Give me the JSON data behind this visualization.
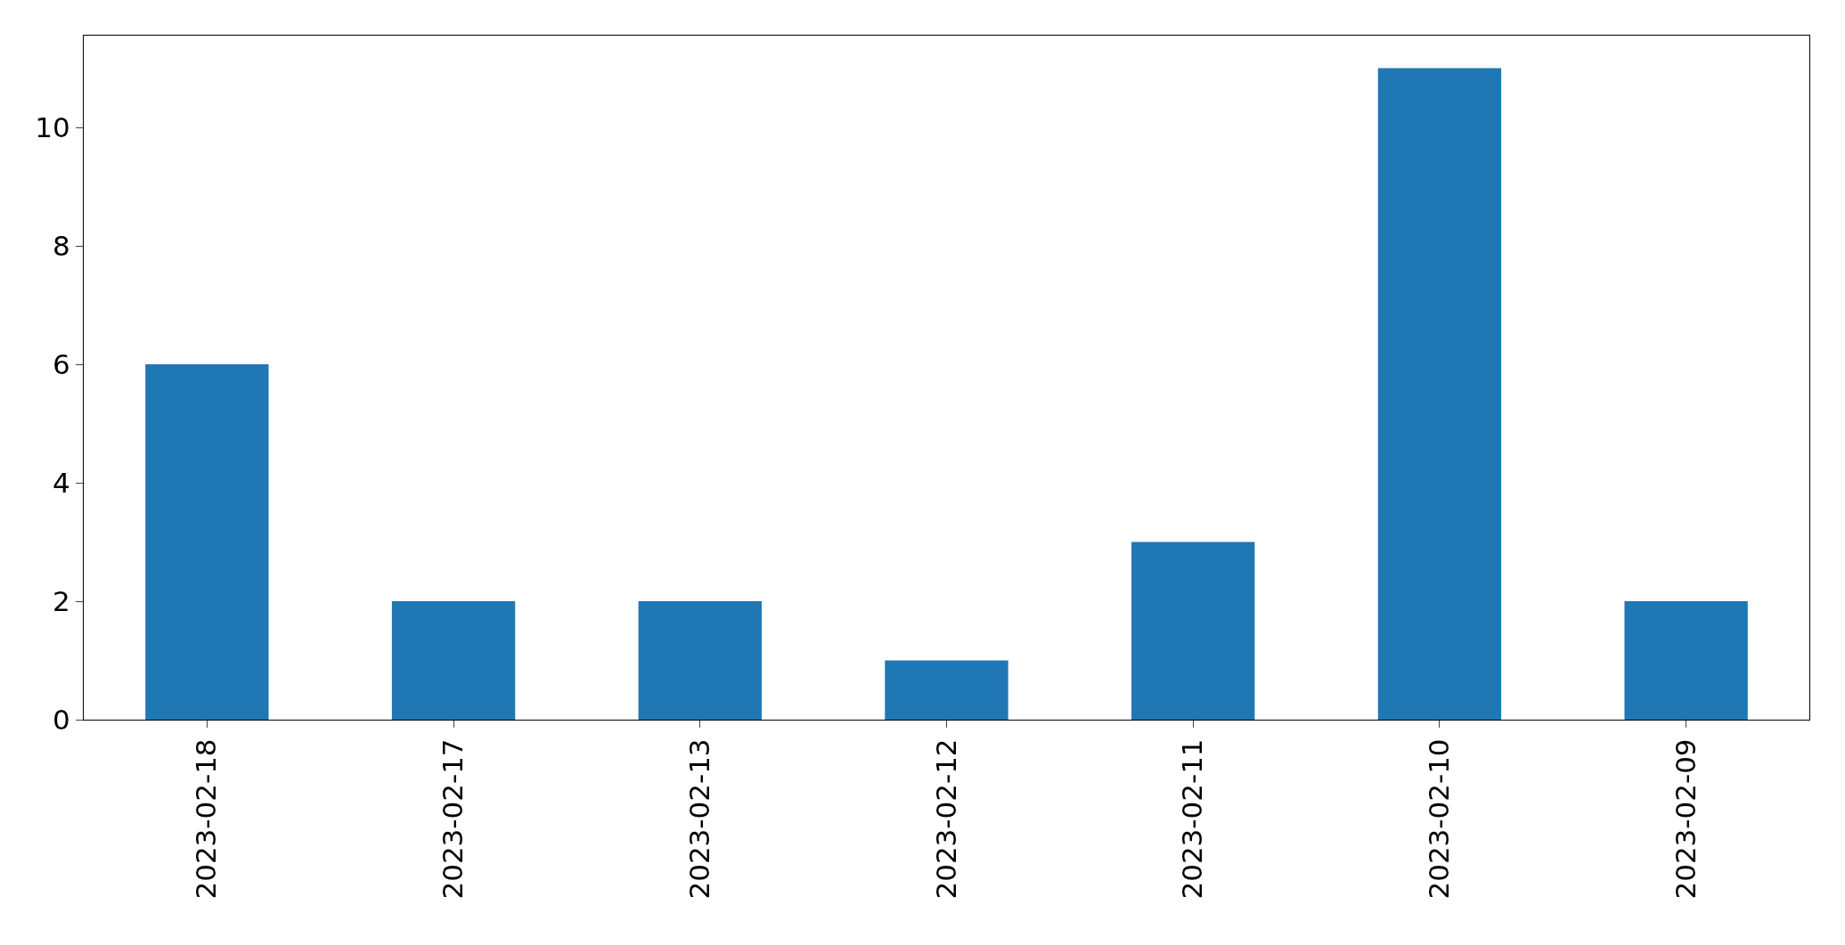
{
  "chart_data": {
    "type": "bar",
    "categories": [
      "2023-02-18",
      "2023-02-17",
      "2023-02-13",
      "2023-02-12",
      "2023-02-11",
      "2023-02-10",
      "2023-02-09"
    ],
    "values": [
      6,
      2,
      2,
      1,
      3,
      11,
      2
    ],
    "color": "#1f77b4",
    "ylim": [
      0,
      11.55
    ],
    "yticks": [
      0,
      2,
      4,
      6,
      8,
      10
    ],
    "grid": false,
    "legend": false
  }
}
